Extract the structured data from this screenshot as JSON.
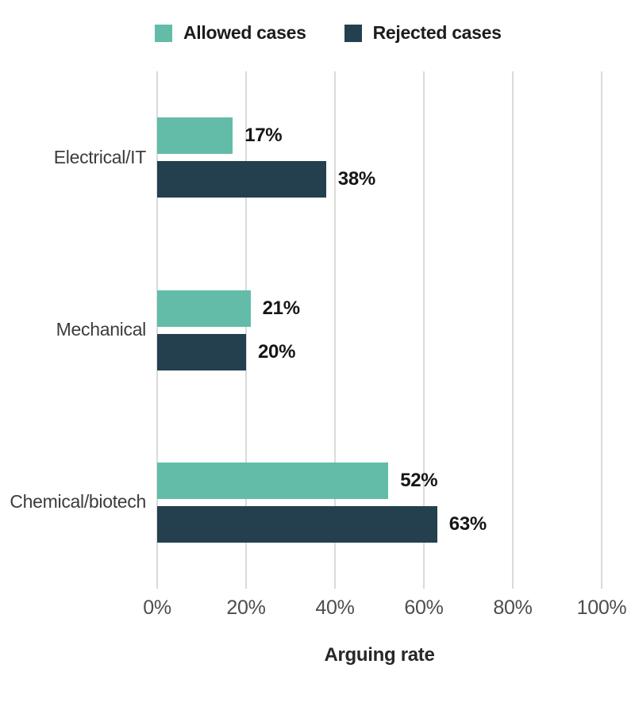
{
  "colors": {
    "allowed": "#63BCA8",
    "rejected": "#24404F",
    "gridline": "#DADADA",
    "background": "#FFFFFF"
  },
  "chart_data": {
    "type": "bar",
    "orientation": "horizontal",
    "title": "",
    "xlabel": "Arguing rate",
    "ylabel": "",
    "xlim": [
      0,
      100
    ],
    "x_ticks": [
      "0%",
      "20%",
      "40%",
      "60%",
      "80%",
      "100%"
    ],
    "grid": "vertical",
    "legend_position": "top",
    "categories": [
      "Electrical/IT",
      "Mechanical",
      "Chemical/biotech"
    ],
    "series": [
      {
        "name": "Allowed cases",
        "color": "#63BCA8",
        "values": [
          17,
          21,
          52
        ],
        "labels": [
          "17%",
          "21%",
          "52%"
        ]
      },
      {
        "name": "Rejected cases",
        "color": "#24404F",
        "values": [
          38,
          20,
          63
        ],
        "labels": [
          "38%",
          "20%",
          "63%"
        ]
      }
    ]
  }
}
